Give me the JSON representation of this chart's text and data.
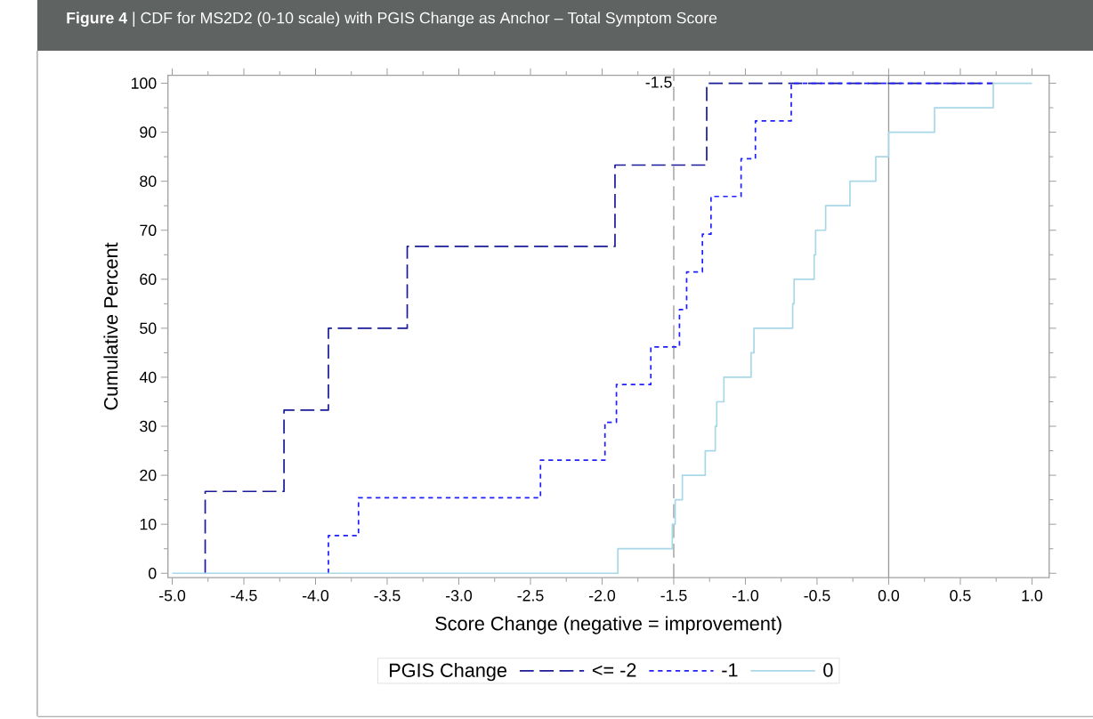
{
  "chart_data": {
    "type": "step",
    "title": "**Figure 4** | CDF for MS2D2 (0-10 scale) with PGIS Change as Anchor – Total Symptom Score",
    "xlabel": "Score Change (negative = improvement)",
    "ylabel": "Cumulative Percent",
    "legend_title": "PGIS  Change",
    "series": [
      {
        "name": "<= -2",
        "color": "#1b1b99",
        "line_style": "dashed",
        "x": [
          -4.77,
          -4.77,
          -4.22,
          -3.91,
          -3.36,
          -1.91,
          -1.27,
          0.73
        ],
        "values": [
          0,
          16.7,
          33.3,
          50,
          66.7,
          83.3,
          100,
          100
        ]
      },
      {
        "name": "-1",
        "color": "#1f1fff",
        "line_style": "dotted",
        "x": [
          -3.91,
          -3.91,
          -3.7,
          -2.43,
          -1.98,
          -1.9,
          -1.66,
          -1.46,
          -1.41,
          -1.3,
          -1.24,
          -1.03,
          -0.93,
          -0.68,
          0.73
        ],
        "values": [
          0,
          7.7,
          15.4,
          23.1,
          30.8,
          38.5,
          46.2,
          53.8,
          61.5,
          69.2,
          76.9,
          84.6,
          92.3,
          100,
          100
        ]
      },
      {
        "name": "0",
        "color": "#a8d8e8",
        "line_style": "solid",
        "x": [
          -5.0,
          -1.89,
          -1.51,
          -1.49,
          -1.44,
          -1.28,
          -1.21,
          -1.2,
          -1.15,
          -0.96,
          -0.94,
          -0.67,
          -0.66,
          -0.52,
          -0.51,
          -0.44,
          -0.27,
          -0.09,
          0.0,
          0.32,
          0.73,
          1.0
        ],
        "values": [
          0,
          5,
          10,
          15,
          20,
          25,
          30,
          35,
          40,
          45,
          50,
          55,
          60,
          65,
          70,
          75,
          80,
          85,
          90,
          95,
          100,
          100
        ]
      }
    ],
    "xlim": [
      -5.03,
      1.12
    ],
    "ylim": [
      -0.9,
      101.6
    ],
    "xticks": [
      {
        "value": -5,
        "label": "-5.0"
      },
      {
        "value": -4.5,
        "label": "-4.5"
      },
      {
        "value": -4,
        "label": "-4.0"
      },
      {
        "value": -3.5,
        "label": "-3.5"
      },
      {
        "value": -3,
        "label": "-3.0"
      },
      {
        "value": -2.5,
        "label": "-2.5"
      },
      {
        "value": -2,
        "label": "-2.0"
      },
      {
        "value": -1.5,
        "label": "-1.5"
      },
      {
        "value": -1,
        "label": "-1.0"
      },
      {
        "value": -0.5,
        "label": "-0.5"
      },
      {
        "value": 0,
        "label": "0.0"
      },
      {
        "value": 0.5,
        "label": "0.5"
      },
      {
        "value": 1,
        "label": "1.0"
      }
    ],
    "yticks": [
      0,
      10,
      20,
      30,
      40,
      50,
      60,
      70,
      80,
      90,
      100
    ],
    "ref_lines": [
      {
        "axis": "x",
        "value": -1.5,
        "label": "-1.5",
        "color": "#999999",
        "line_style": "dashed"
      },
      {
        "axis": "x",
        "value": 0,
        "color": "#999999",
        "line_style": "solid"
      }
    ],
    "grid": false,
    "legend": "bottom"
  }
}
